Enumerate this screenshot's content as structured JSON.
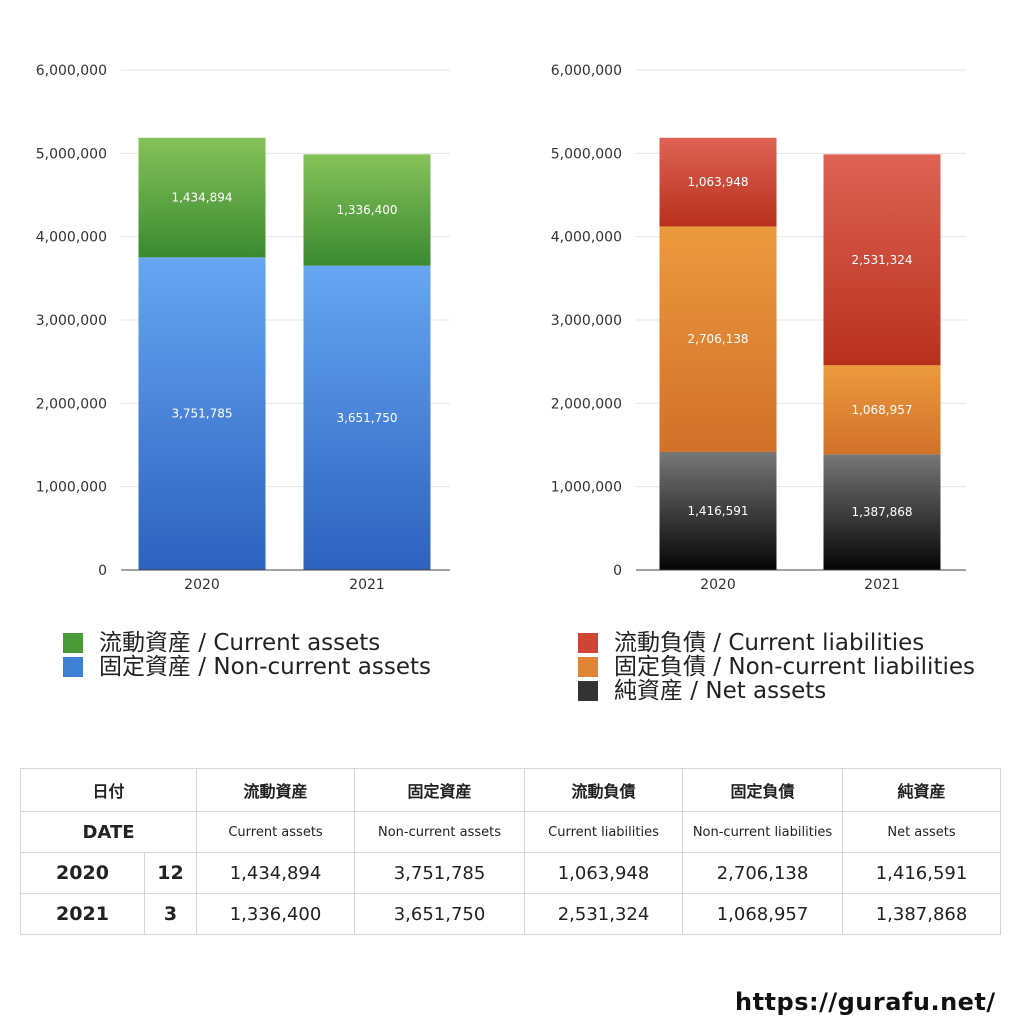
{
  "chart_data": [
    {
      "type": "bar",
      "stacked": true,
      "categories": [
        "2020",
        "2021"
      ],
      "series": [
        {
          "name": "固定資産 / Non-current assets",
          "values": [
            3751785,
            3651750
          ],
          "labels": [
            "3,751,785",
            "3,651,750"
          ],
          "color_top": "#66a6f2",
          "color_bottom": "#2d62bf"
        },
        {
          "name": "流動資産 / Current assets",
          "values": [
            1434894,
            1336400
          ],
          "labels": [
            "1,434,894",
            "1,336,400"
          ],
          "color_top": "#86c25a",
          "color_bottom": "#3a8a30"
        }
      ],
      "ylim": [
        0,
        6000000
      ],
      "yticks": [
        0,
        1000000,
        2000000,
        3000000,
        4000000,
        5000000,
        6000000
      ],
      "ytick_labels": [
        "0",
        "1,000,000",
        "2,000,000",
        "3,000,000",
        "4,000,000",
        "5,000,000",
        "6,000,000"
      ],
      "grid": true
    },
    {
      "type": "bar",
      "stacked": true,
      "categories": [
        "2020",
        "2021"
      ],
      "series": [
        {
          "name": "純資産 / Net assets",
          "values": [
            1416591,
            1387868
          ],
          "labels": [
            "1,416,591",
            "1,387,868"
          ],
          "color_top": "#777777",
          "color_bottom": "#050505"
        },
        {
          "name": "固定負債 / Non-current liabilities",
          "values": [
            2706138,
            1068957
          ],
          "labels": [
            "2,706,138",
            "1,068,957"
          ],
          "color_top": "#ec9a3e",
          "color_bottom": "#d1702a"
        },
        {
          "name": "流動負債 / Current liabilities",
          "values": [
            1063948,
            2531324
          ],
          "labels": [
            "1,063,948",
            "2,531,324"
          ],
          "color_top": "#de6355",
          "color_bottom": "#b8301c"
        }
      ],
      "ylim": [
        0,
        6000000
      ],
      "yticks": [
        0,
        1000000,
        2000000,
        3000000,
        4000000,
        5000000,
        6000000
      ],
      "ytick_labels": [
        "0",
        "1,000,000",
        "2,000,000",
        "3,000,000",
        "4,000,000",
        "5,000,000",
        "6,000,000"
      ],
      "grid": true
    }
  ],
  "legend_left": [
    {
      "label": "流動資産 / Current assets",
      "color": "#4a9a3a"
    },
    {
      "label": "固定資産 / Non-current assets",
      "color": "#3f7fd6"
    }
  ],
  "legend_right": [
    {
      "label": "流動負債 / Current liabilities",
      "color": "#cf4535"
    },
    {
      "label": "固定負債 / Non-current liabilities",
      "color": "#e08436"
    },
    {
      "label": "純資産 / Net assets",
      "color": "#333333"
    }
  ],
  "table": {
    "header_jp": [
      "日付",
      "流動資産",
      "固定資産",
      "流動負債",
      "固定負債",
      "純資産"
    ],
    "header_en": [
      "DATE",
      "Current assets",
      "Non-current assets",
      "Current liabilities",
      "Non-current liabilities",
      "Net assets"
    ],
    "rows": [
      {
        "year": "2020",
        "month": "12",
        "cells": [
          "1,434,894",
          "3,751,785",
          "1,063,948",
          "2,706,138",
          "1,416,591"
        ]
      },
      {
        "year": "2021",
        "month": "3",
        "cells": [
          "1,336,400",
          "3,651,750",
          "2,531,324",
          "1,068,957",
          "1,387,868"
        ]
      }
    ]
  },
  "site_url": "https://gurafu.net/"
}
